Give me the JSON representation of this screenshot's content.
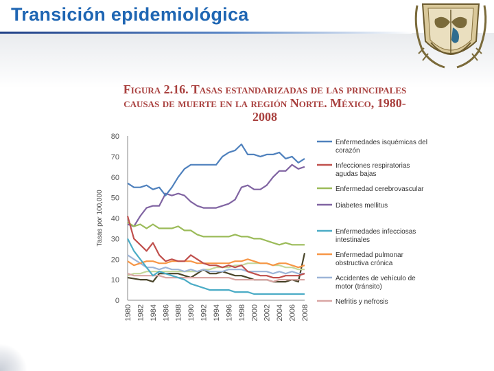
{
  "header": {
    "title": "Transición epidemiológica"
  },
  "figure": {
    "title_line1": "Figura 2.16. Tasas estandarizadas de las principales",
    "title_line2": "causas de muerte en la región Norte. México, 1980-",
    "title_line3": "2008"
  },
  "colors": {
    "header_text": "#1f66b3",
    "figure_title": "#a9413f"
  },
  "chart_data": {
    "type": "line",
    "ylabel": "Tasas por 100,000",
    "xlabel": "",
    "ylim": [
      0,
      80
    ],
    "yticks": [
      "0",
      "10",
      "20",
      "30",
      "40",
      "50",
      "60",
      "70",
      "80"
    ],
    "xticks": [
      "1980",
      "1982",
      "1984",
      "1986",
      "1988",
      "1990",
      "1992",
      "1994",
      "1996",
      "1998",
      "2000",
      "2002",
      "2004",
      "2006",
      "2008"
    ],
    "x": [
      1980,
      1981,
      1982,
      1983,
      1984,
      1985,
      1986,
      1987,
      1988,
      1989,
      1990,
      1991,
      1992,
      1993,
      1994,
      1995,
      1996,
      1997,
      1998,
      1999,
      2000,
      2001,
      2002,
      2003,
      2004,
      2005,
      2006,
      2007,
      2008
    ],
    "legend_position": "right",
    "series": [
      {
        "name": "Enfermedades isquémicas del corazón",
        "color": "#4f81bd",
        "values": [
          57,
          55,
          55,
          56,
          54,
          55,
          51,
          55,
          60,
          64,
          66,
          66,
          66,
          66,
          66,
          70,
          72,
          73,
          76,
          71,
          71,
          70,
          71,
          71,
          72,
          69,
          70,
          67,
          69
        ]
      },
      {
        "name": "Infecciones respiratorias agudas bajas",
        "color": "#c0504d",
        "values": [
          41,
          30,
          27,
          24,
          28,
          22,
          19,
          20,
          19,
          19,
          22,
          20,
          18,
          17,
          17,
          16,
          17,
          16,
          17,
          14,
          13,
          12,
          12,
          11,
          11,
          12,
          12,
          12,
          13
        ]
      },
      {
        "name": "Enfermedad cerebrovascular",
        "color": "#9bbb59",
        "values": [
          38,
          36,
          37,
          35,
          37,
          35,
          35,
          35,
          36,
          34,
          34,
          32,
          31,
          31,
          31,
          31,
          31,
          32,
          31,
          31,
          30,
          30,
          29,
          28,
          27,
          28,
          27,
          27,
          27
        ]
      },
      {
        "name": "Diabetes mellitus",
        "color": "#8064a2",
        "values": [
          37,
          36,
          41,
          45,
          46,
          46,
          52,
          51,
          52,
          51,
          48,
          46,
          45,
          45,
          45,
          46,
          47,
          49,
          55,
          56,
          54,
          54,
          56,
          60,
          63,
          63,
          66,
          64,
          65
        ]
      },
      {
        "name": "Enfermedades infecciosas intestinales",
        "color": "#4bacc6",
        "values": [
          30,
          24,
          20,
          16,
          12,
          14,
          13,
          12,
          11,
          10,
          8,
          7,
          6,
          5,
          5,
          5,
          5,
          4,
          4,
          4,
          3,
          3,
          3,
          3,
          3,
          3,
          3,
          3,
          3
        ]
      },
      {
        "name": "Enfermedad pulmonar obstructiva crónica",
        "color": "#f79646",
        "values": [
          19,
          17,
          18,
          19,
          19,
          18,
          18,
          19,
          19,
          19,
          19,
          18,
          18,
          18,
          18,
          18,
          18,
          19,
          19,
          20,
          19,
          18,
          18,
          17,
          18,
          18,
          17,
          16,
          17
        ]
      },
      {
        "name": "Accidentes de vehículo de motor (tránsito)",
        "color": "#9db5d8",
        "values": [
          22,
          20,
          18,
          16,
          16,
          15,
          16,
          15,
          15,
          14,
          15,
          14,
          15,
          14,
          14,
          14,
          15,
          15,
          15,
          14,
          14,
          14,
          14,
          13,
          14,
          13,
          14,
          13,
          13
        ]
      },
      {
        "name": "Nefritis y nefrosis",
        "color": "#d9a6a4",
        "values": [
          13,
          12,
          12,
          12,
          12,
          12,
          11,
          11,
          11,
          11,
          11,
          11,
          11,
          11,
          11,
          11,
          11,
          10,
          10,
          10,
          10,
          10,
          10,
          9,
          10,
          10,
          10,
          10,
          10
        ]
      },
      {
        "name": "",
        "color": "#c4d79b",
        "values": [
          12,
          13,
          13,
          14,
          14,
          14,
          14,
          14,
          14,
          14,
          14,
          14,
          15,
          15,
          16,
          16,
          16,
          17,
          17,
          18,
          18,
          18,
          18,
          17,
          17,
          16,
          16,
          15,
          15
        ]
      },
      {
        "name": "",
        "color": "#4a452a",
        "values": [
          11,
          10.5,
          10,
          10,
          9,
          13,
          13,
          13,
          13,
          12,
          11,
          13,
          15,
          13,
          13,
          14,
          13,
          12,
          12,
          11,
          10,
          10,
          10,
          9,
          9,
          9,
          10,
          9,
          23
        ]
      }
    ]
  }
}
